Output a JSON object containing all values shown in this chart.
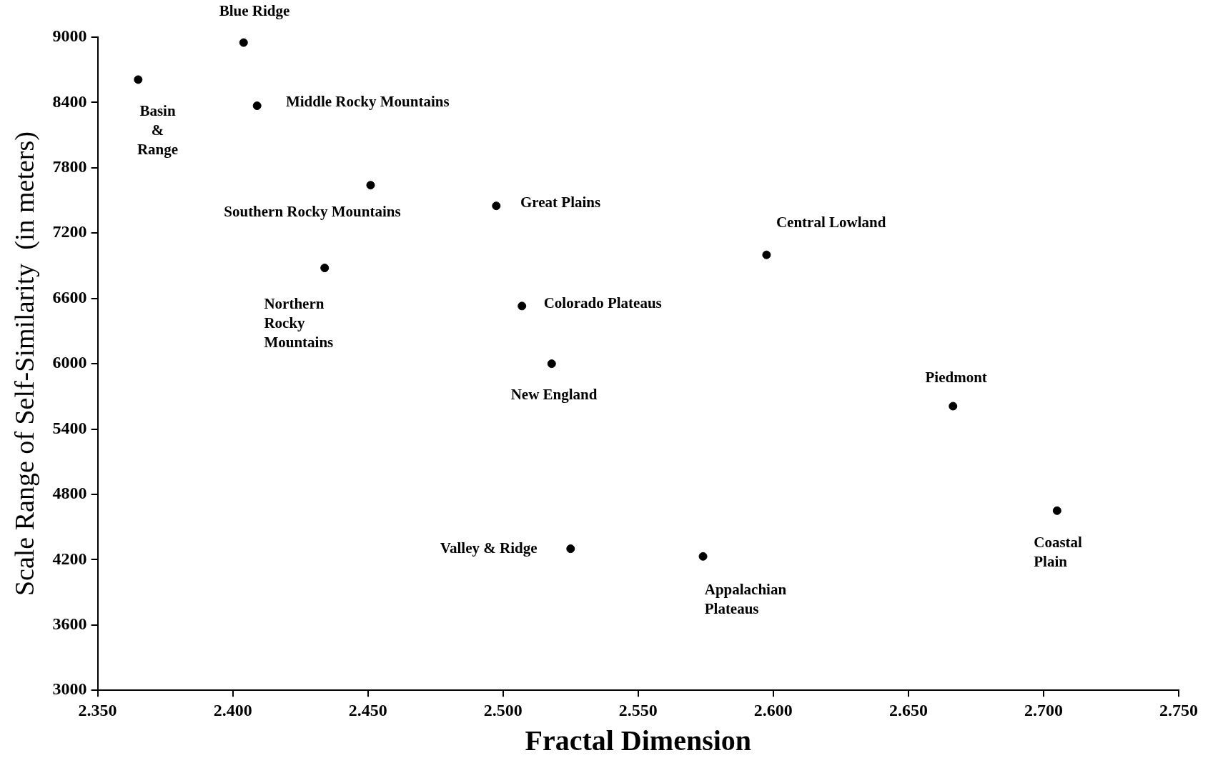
{
  "chart_data": {
    "type": "scatter",
    "xlabel": "Fractal Dimension",
    "ylabel": "Scale Range of Self-Similarity  (in meters)",
    "x": [
      2.365,
      2.404,
      2.409,
      2.451,
      2.4975,
      2.434,
      2.5975,
      2.507,
      2.518,
      2.6665,
      2.705,
      2.525,
      2.574
    ],
    "series": [
      {
        "color": "#000000",
        "values": [
          8610,
          8950,
          8370,
          7640,
          7450,
          6880,
          7000,
          6530,
          6000,
          5610,
          4650,
          4300,
          4230
        ]
      }
    ],
    "xlim": [
      2.35,
      2.75
    ],
    "xticks": [
      {
        "value": 2.35,
        "label": "2.350"
      },
      {
        "value": 2.4,
        "label": "2.400"
      },
      {
        "value": 2.45,
        "label": "2.450"
      },
      {
        "value": 2.5,
        "label": "2.500"
      },
      {
        "value": 2.55,
        "label": "2.550"
      },
      {
        "value": 2.6,
        "label": "2.600"
      },
      {
        "value": 2.65,
        "label": "2.650"
      },
      {
        "value": 2.7,
        "label": "2.700"
      },
      {
        "value": 2.75,
        "label": "2.750"
      }
    ],
    "ylim": [
      3000,
      9000
    ],
    "yticks": [
      3000,
      3600,
      4200,
      4800,
      5400,
      6000,
      6600,
      7200,
      7800,
      8400,
      9000
    ],
    "grid": false,
    "legend": false,
    "marker": "circle",
    "annotations": [
      {
        "text": "Basin\n&\nRange",
        "x": 2.365,
        "y": 8610
      },
      {
        "text": "Blue Ridge",
        "x": 2.404,
        "y": 8950
      },
      {
        "text": "Middle Rocky Mountains",
        "x": 2.409,
        "y": 8370
      },
      {
        "text": "Southern Rocky Mountains",
        "x": 2.451,
        "y": 7640
      },
      {
        "text": "Great Plains",
        "x": 2.4975,
        "y": 7450
      },
      {
        "text": "Northern\nRocky\nMountains",
        "x": 2.434,
        "y": 6880
      },
      {
        "text": "Central Lowland",
        "x": 2.5975,
        "y": 7000
      },
      {
        "text": "Colorado Plateaus",
        "x": 2.507,
        "y": 6530
      },
      {
        "text": "New England",
        "x": 2.518,
        "y": 6000
      },
      {
        "text": "Piedmont",
        "x": 2.6665,
        "y": 5610
      },
      {
        "text": "Coastal\nPlain",
        "x": 2.705,
        "y": 4650
      },
      {
        "text": "Valley & Ridge",
        "x": 2.525,
        "y": 4300
      },
      {
        "text": "Appalachian\nPlateaus",
        "x": 2.574,
        "y": 4230
      }
    ]
  }
}
